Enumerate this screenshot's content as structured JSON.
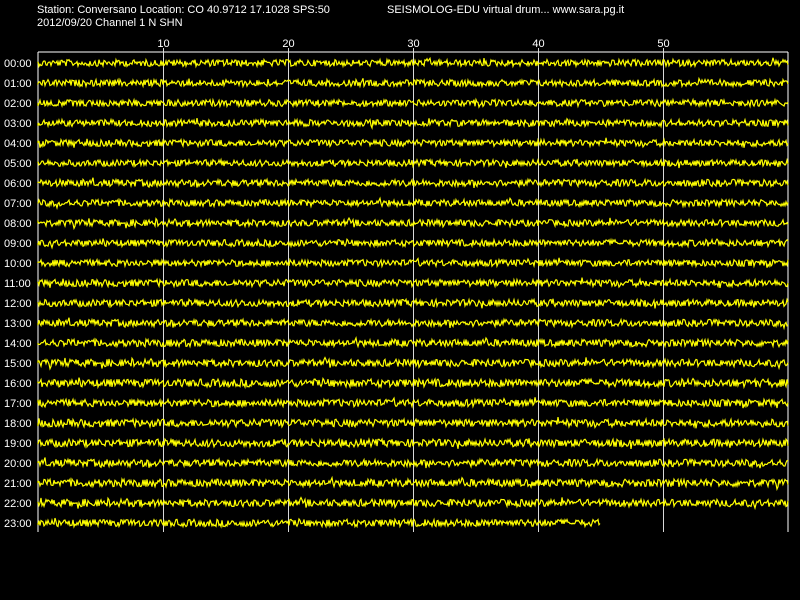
{
  "header": {
    "station_line": "Station: Conversano Location: CO 40.9712 17.1028 SPS:50",
    "app_line": "SEISMOLOG-EDU virtual drum... www.sara.pg.it",
    "date_channel_line": "2012/09/20  Channel 1 N SHN"
  },
  "colors": {
    "background": "#000000",
    "trace": "#ffff00",
    "grid": "#ffffff",
    "text": "#ffffff"
  },
  "chart_data": {
    "type": "line",
    "description_kind": "helicorder",
    "x_axis": {
      "unit": "minutes",
      "range": [
        0,
        60
      ],
      "tick_labels": [
        "10",
        "20",
        "30",
        "40",
        "50"
      ],
      "tick_values": [
        10,
        20,
        30,
        40,
        50
      ]
    },
    "y_axis": {
      "row_labels": [
        "00:00",
        "01:00",
        "02:00",
        "03:00",
        "04:00",
        "05:00",
        "06:00",
        "07:00",
        "08:00",
        "09:00",
        "10:00",
        "11:00",
        "12:00",
        "13:00",
        "14:00",
        "15:00",
        "16:00",
        "17:00",
        "18:00",
        "19:00",
        "20:00",
        "21:00",
        "22:00",
        "23:00"
      ]
    },
    "grid": true,
    "rows": [
      {
        "hour": "00:00",
        "end_minute": 60,
        "amplitude": 0.45
      },
      {
        "hour": "01:00",
        "end_minute": 60,
        "amplitude": 0.45
      },
      {
        "hour": "02:00",
        "end_minute": 60,
        "amplitude": 0.45
      },
      {
        "hour": "03:00",
        "end_minute": 60,
        "amplitude": 0.45
      },
      {
        "hour": "04:00",
        "end_minute": 60,
        "amplitude": 0.45
      },
      {
        "hour": "05:00",
        "end_minute": 60,
        "amplitude": 0.4
      },
      {
        "hour": "06:00",
        "end_minute": 60,
        "amplitude": 0.5
      },
      {
        "hour": "07:00",
        "end_minute": 60,
        "amplitude": 0.45
      },
      {
        "hour": "08:00",
        "end_minute": 60,
        "amplitude": 0.45
      },
      {
        "hour": "09:00",
        "end_minute": 60,
        "amplitude": 0.45
      },
      {
        "hour": "10:00",
        "end_minute": 60,
        "amplitude": 0.45
      },
      {
        "hour": "11:00",
        "end_minute": 60,
        "amplitude": 0.5
      },
      {
        "hour": "12:00",
        "end_minute": 60,
        "amplitude": 0.5
      },
      {
        "hour": "13:00",
        "end_minute": 60,
        "amplitude": 0.5
      },
      {
        "hour": "14:00",
        "end_minute": 60,
        "amplitude": 0.55
      },
      {
        "hour": "15:00",
        "end_minute": 60,
        "amplitude": 0.55
      },
      {
        "hour": "16:00",
        "end_minute": 60,
        "amplitude": 0.65
      },
      {
        "hour": "17:00",
        "end_minute": 60,
        "amplitude": 0.55
      },
      {
        "hour": "18:00",
        "end_minute": 60,
        "amplitude": 0.6
      },
      {
        "hour": "19:00",
        "end_minute": 60,
        "amplitude": 0.6
      },
      {
        "hour": "20:00",
        "end_minute": 60,
        "amplitude": 0.55
      },
      {
        "hour": "21:00",
        "end_minute": 60,
        "amplitude": 0.6
      },
      {
        "hour": "22:00",
        "end_minute": 60,
        "amplitude": 0.55
      },
      {
        "hour": "23:00",
        "end_minute": 45,
        "amplitude": 0.55
      }
    ]
  }
}
